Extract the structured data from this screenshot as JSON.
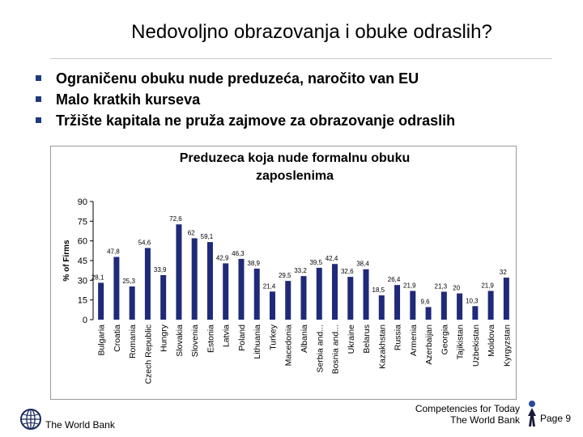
{
  "slide": {
    "title": "Nedovoljno obrazovanja i obuke odraslih?",
    "bullets": [
      "Ograničenu obuku nude preduzeća, naročito van EU",
      "Malo kratkih kurseva",
      "Tržište kapitala ne pruža zajmove za obrazovanje odraslih"
    ],
    "footer_left": "The World Bank",
    "footer_right_line1": "Competencies for Today",
    "footer_right_line2": "The World Bank",
    "page_label": "Page 9",
    "logo_icon": "globe-icon",
    "footer_icon": "person-figure-icon"
  },
  "chart_data": {
    "type": "bar",
    "title_line1": "Preduzeca koja nude formalnu obuku",
    "title_line2": "zaposlenima",
    "ylabel": "% of Firms",
    "ylim": [
      0,
      90
    ],
    "yticks": [
      0,
      15,
      30,
      45,
      60,
      75,
      90
    ],
    "bar_color": "#1f2a78",
    "categories": [
      "Bulgaria",
      "Croatia",
      "Romania",
      "Czech Republic",
      "Hungry",
      "Slovakia",
      "Slovenia",
      "Estonia",
      "Latvia",
      "Poland",
      "Lithuania",
      "Turkey",
      "Macedonia",
      "Albania",
      "Serbia and...",
      "Bosnia and...",
      "Ukraine",
      "Belarus",
      "Kazakhstan",
      "Russia",
      "Armenia",
      "Azerbaijan",
      "Georgia",
      "Tajikistan",
      "Uzbekistan",
      "Moldova",
      "Kyrgyzstan"
    ],
    "values": [
      28.1,
      47.8,
      25.3,
      54.6,
      33.9,
      72.6,
      62,
      59.1,
      42.9,
      46.3,
      38.9,
      21.4,
      29.5,
      33.2,
      39.5,
      42.4,
      32.6,
      38.4,
      18.5,
      26.4,
      21.9,
      9.6,
      21.3,
      20,
      10.3,
      21.9,
      32
    ],
    "value_labels": [
      "28,1",
      "47,8",
      "25,3",
      "54,6",
      "33,9",
      "72,6",
      "62",
      "59,1",
      "42,9",
      "46,3",
      "38,9",
      "21,4",
      "29,5",
      "33,2",
      "39,5",
      "42,4",
      "32,6",
      "38,4",
      "18,5",
      "26,4",
      "21,9",
      "9,6",
      "21,3",
      "20",
      "10,3",
      "21,9",
      "32"
    ]
  }
}
